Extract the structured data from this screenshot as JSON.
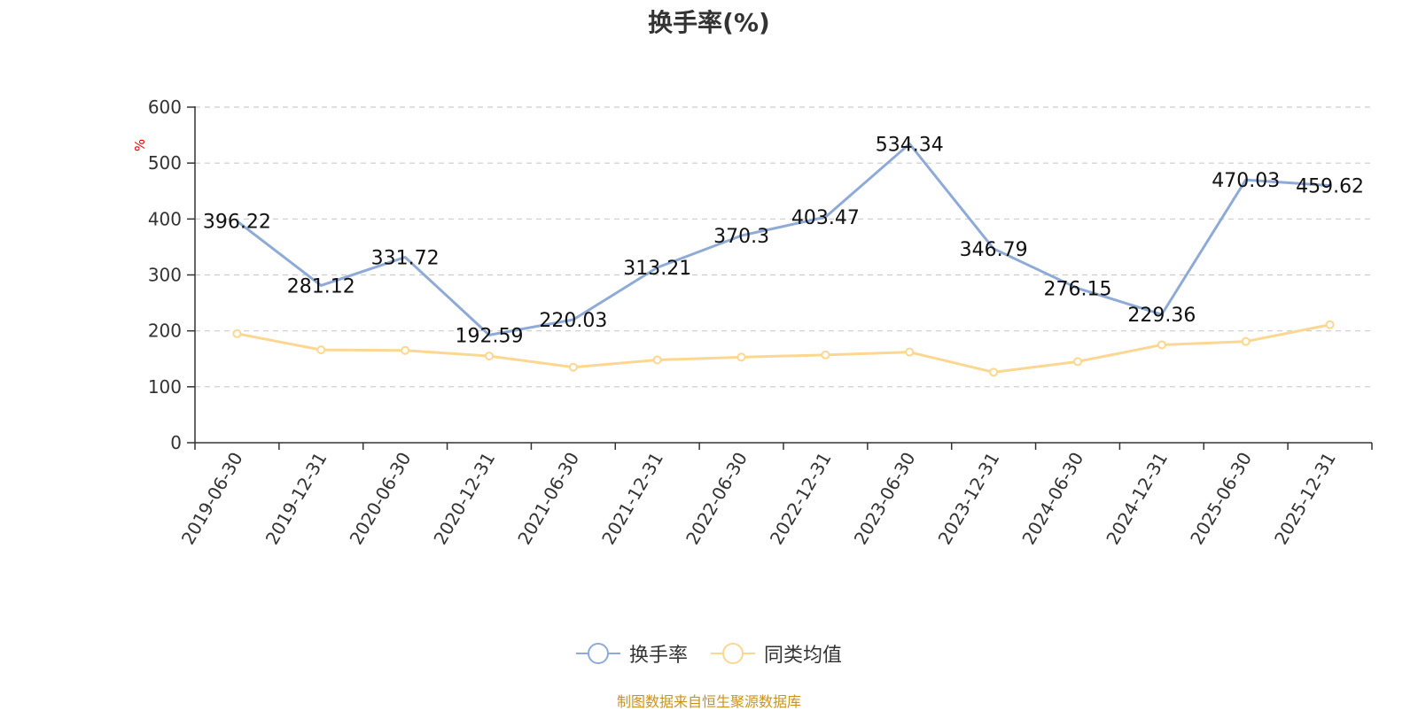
{
  "chart_data": {
    "type": "line",
    "title": "换手率(%)",
    "ylabel": "%",
    "xlabel": "",
    "ylim": [
      0,
      600
    ],
    "yticks": [
      0,
      100,
      200,
      300,
      400,
      500,
      600
    ],
    "grid": "horizontal-dashed",
    "categories": [
      "2019-06-30",
      "2019-12-31",
      "2020-06-30",
      "2020-12-31",
      "2021-06-30",
      "2021-12-31",
      "2022-06-30",
      "2022-12-31",
      "2023-06-30",
      "2023-12-31",
      "2024-06-30",
      "2024-12-31",
      "2025-06-30",
      "2025-12-31"
    ],
    "series": [
      {
        "name": "换手率",
        "color": "#8eaad6",
        "values": [
          396.22,
          281.12,
          331.72,
          192.59,
          220.03,
          313.21,
          370.3,
          403.47,
          534.34,
          346.79,
          276.15,
          229.36,
          470.03,
          459.62
        ],
        "labels": [
          "396.22",
          "281.12",
          "331.72",
          "192.59",
          "220.03",
          "313.21",
          "370.3",
          "403.47",
          "534.34",
          "346.79",
          "276.15",
          "229.36",
          "470.03",
          "459.62"
        ]
      },
      {
        "name": "同类均值",
        "color": "#fbd792",
        "values": [
          195,
          166,
          165,
          155,
          135,
          148,
          153,
          157,
          162,
          126,
          145,
          175,
          181,
          211
        ]
      }
    ],
    "legend_position": "bottom-center"
  },
  "source": "制图数据来自恒生聚源数据库"
}
